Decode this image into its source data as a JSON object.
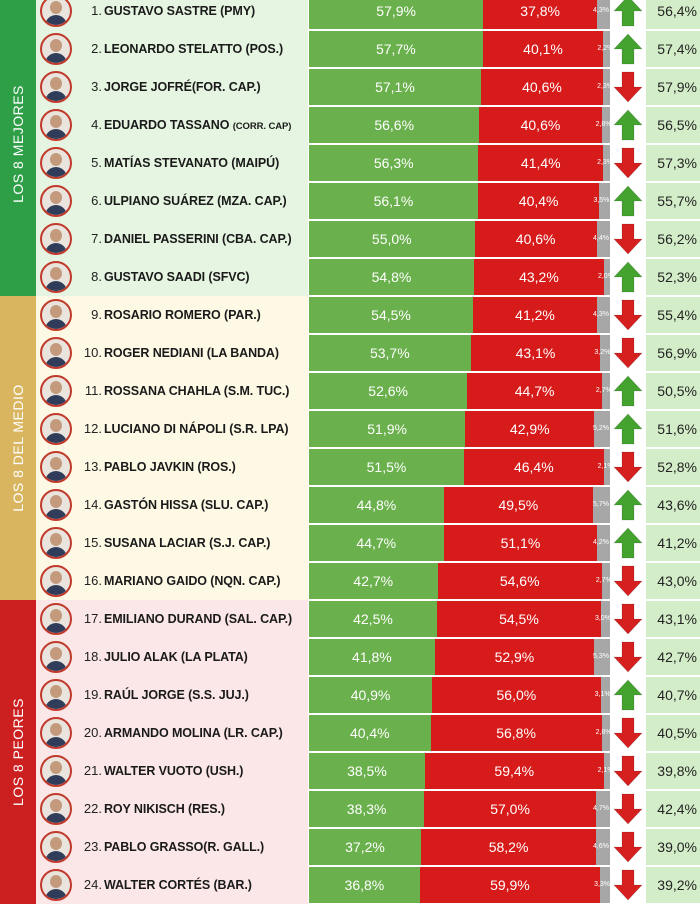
{
  "groups": [
    {
      "label": "LOS 8 MEJORES",
      "color": "#2e9e47",
      "row_bg": "#e6f5e1",
      "from": 1,
      "to": 8
    },
    {
      "label": "LOS 8 DEL MEDIO",
      "color": "#d9b55f",
      "row_bg": "#fdf9e5",
      "from": 9,
      "to": 16
    },
    {
      "label": "LOS 8 PEORES",
      "color": "#cc1f1f",
      "row_bg": "#fbe7e7",
      "from": 17,
      "to": 24
    }
  ],
  "colors": {
    "approval": "#6ab04c",
    "disapproval": "#d71a1a",
    "ns": "#a7a7a7",
    "up": "#43a32e",
    "down": "#d61f1f",
    "previous_bg": "#d4edc9"
  },
  "chart_data": {
    "type": "bar",
    "stacked": true,
    "orientation": "horizontal",
    "rows": [
      {
        "rank": "1.",
        "name": "GUSTAVO SASTRE",
        "sub": "(PMY)",
        "approval": 57.9,
        "approval_label": "57,9%",
        "disapproval": 37.8,
        "disapproval_label": "37,8%",
        "ns": 4.3,
        "ns_label": "4,3%",
        "trend": "up",
        "previous": 56.4,
        "previous_label": "56,4%",
        "sub_small": false
      },
      {
        "rank": "2.",
        "name": "LEONARDO STELATTO",
        "sub": "(POS.)",
        "approval": 57.7,
        "approval_label": "57,7%",
        "disapproval": 40.1,
        "disapproval_label": "40,1%",
        "ns": 2.2,
        "ns_label": "2,2%",
        "trend": "up",
        "previous": 57.4,
        "previous_label": "57,4%",
        "sub_small": false
      },
      {
        "rank": "3.",
        "name": "JORGE JOFRÉ",
        "sub": "(FOR. CAP.)",
        "approval": 57.1,
        "approval_label": "57,1%",
        "disapproval": 40.6,
        "disapproval_label": "40,6%",
        "ns": 2.3,
        "ns_label": "2,3%",
        "trend": "down",
        "previous": 57.9,
        "previous_label": "57,9%",
        "sub_small": false,
        "nospace": true
      },
      {
        "rank": "4.",
        "name": "EDUARDO TASSANO",
        "sub": "(CORR. CAP)",
        "approval": 56.6,
        "approval_label": "56,6%",
        "disapproval": 40.6,
        "disapproval_label": "40,6%",
        "ns": 2.8,
        "ns_label": "2,8%",
        "trend": "up",
        "previous": 56.5,
        "previous_label": "56,5%",
        "sub_small": true
      },
      {
        "rank": "5.",
        "name": "MATÍAS STEVANATO",
        "sub": "(MAIPÚ)",
        "approval": 56.3,
        "approval_label": "56,3%",
        "disapproval": 41.4,
        "disapproval_label": "41,4%",
        "ns": 2.3,
        "ns_label": "2,3%",
        "trend": "down",
        "previous": 57.3,
        "previous_label": "57,3%",
        "sub_small": false
      },
      {
        "rank": "6.",
        "name": "ULPIANO SUÁREZ",
        "sub": "(MZA. CAP.)",
        "approval": 56.1,
        "approval_label": "56,1%",
        "disapproval": 40.4,
        "disapproval_label": "40,4%",
        "ns": 3.5,
        "ns_label": "3,5%",
        "trend": "up",
        "previous": 55.7,
        "previous_label": "55,7%",
        "sub_small": false
      },
      {
        "rank": "7.",
        "name": "DANIEL PASSERINI",
        "sub": "(CBA. CAP.)",
        "approval": 55.0,
        "approval_label": "55,0%",
        "disapproval": 40.6,
        "disapproval_label": "40,6%",
        "ns": 4.4,
        "ns_label": "4,4%",
        "trend": "down",
        "previous": 56.2,
        "previous_label": "56,2%",
        "sub_small": false
      },
      {
        "rank": "8.",
        "name": "GUSTAVO SAADI",
        "sub": "(SFVC)",
        "approval": 54.8,
        "approval_label": "54,8%",
        "disapproval": 43.2,
        "disapproval_label": "43,2%",
        "ns": 2.0,
        "ns_label": "2,0%",
        "trend": "up",
        "previous": 52.3,
        "previous_label": "52,3%",
        "sub_small": false
      },
      {
        "rank": "9.",
        "name": "ROSARIO ROMERO",
        "sub": "(PAR.)",
        "approval": 54.5,
        "approval_label": "54,5%",
        "disapproval": 41.2,
        "disapproval_label": "41,2%",
        "ns": 4.3,
        "ns_label": "4,3%",
        "trend": "down",
        "previous": 55.4,
        "previous_label": "55,4%",
        "sub_small": false
      },
      {
        "rank": "10.",
        "name": "ROGER NEDIANI",
        "sub": "(LA BANDA)",
        "approval": 53.7,
        "approval_label": "53,7%",
        "disapproval": 43.1,
        "disapproval_label": "43,1%",
        "ns": 3.2,
        "ns_label": "3,2%",
        "trend": "down",
        "previous": 56.9,
        "previous_label": "56,9%",
        "sub_small": false
      },
      {
        "rank": "11.",
        "name": "ROSSANA CHAHLA",
        "sub": "(S.M. TUC.)",
        "approval": 52.6,
        "approval_label": "52,6%",
        "disapproval": 44.7,
        "disapproval_label": "44,7%",
        "ns": 2.7,
        "ns_label": "2,7%",
        "trend": "up",
        "previous": 50.5,
        "previous_label": "50,5%",
        "sub_small": false
      },
      {
        "rank": "12.",
        "name": "LUCIANO DI NÁPOLI",
        "sub": "(S.R. LPA)",
        "approval": 51.9,
        "approval_label": "51,9%",
        "disapproval": 42.9,
        "disapproval_label": "42,9%",
        "ns": 5.2,
        "ns_label": "5,2%",
        "trend": "up",
        "previous": 51.6,
        "previous_label": "51,6%",
        "sub_small": false
      },
      {
        "rank": "13.",
        "name": "PABLO JAVKIN",
        "sub": "(ROS.)",
        "approval": 51.5,
        "approval_label": "51,5%",
        "disapproval": 46.4,
        "disapproval_label": "46,4%",
        "ns": 2.1,
        "ns_label": "2,1%",
        "trend": "down",
        "previous": 52.8,
        "previous_label": "52,8%",
        "sub_small": false
      },
      {
        "rank": "14.",
        "name": "GASTÓN HISSA",
        "sub": "(SLU. CAP.)",
        "approval": 44.8,
        "approval_label": "44,8%",
        "disapproval": 49.5,
        "disapproval_label": "49,5%",
        "ns": 5.7,
        "ns_label": "5,7%",
        "trend": "up",
        "previous": 43.6,
        "previous_label": "43,6%",
        "sub_small": false
      },
      {
        "rank": "15.",
        "name": "SUSANA LACIAR",
        "sub": "(S.J. CAP.)",
        "approval": 44.7,
        "approval_label": "44,7%",
        "disapproval": 51.1,
        "disapproval_label": "51,1%",
        "ns": 4.2,
        "ns_label": "4,2%",
        "trend": "up",
        "previous": 41.2,
        "previous_label": "41,2%",
        "sub_small": false
      },
      {
        "rank": "16.",
        "name": "MARIANO GAIDO",
        "sub": "(NQN. CAP.)",
        "approval": 42.7,
        "approval_label": "42,7%",
        "disapproval": 54.6,
        "disapproval_label": "54,6%",
        "ns": 2.7,
        "ns_label": "2,7%",
        "trend": "down",
        "previous": 43.0,
        "previous_label": "43,0%",
        "sub_small": false
      },
      {
        "rank": "17.",
        "name": "EMILIANO DURAND",
        "sub": "(SAL. CAP.)",
        "approval": 42.5,
        "approval_label": "42,5%",
        "disapproval": 54.5,
        "disapproval_label": "54,5%",
        "ns": 3.0,
        "ns_label": "3,0%",
        "trend": "down",
        "previous": 43.1,
        "previous_label": "43,1%",
        "sub_small": false
      },
      {
        "rank": "18.",
        "name": "JULIO ALAK",
        "sub": "(LA PLATA)",
        "approval": 41.8,
        "approval_label": "41,8%",
        "disapproval": 52.9,
        "disapproval_label": "52,9%",
        "ns": 5.3,
        "ns_label": "5,3%",
        "trend": "down",
        "previous": 42.7,
        "previous_label": "42,7%",
        "sub_small": false
      },
      {
        "rank": "19.",
        "name": "RAÚL JORGE",
        "sub": "(S.S. JUJ.)",
        "approval": 40.9,
        "approval_label": "40,9%",
        "disapproval": 56.0,
        "disapproval_label": "56,0%",
        "ns": 3.1,
        "ns_label": "3,1%",
        "trend": "up",
        "previous": 40.7,
        "previous_label": "40,7%",
        "sub_small": false
      },
      {
        "rank": "20.",
        "name": "ARMANDO MOLINA",
        "sub": "(LR. CAP.)",
        "approval": 40.4,
        "approval_label": "40,4%",
        "disapproval": 56.8,
        "disapproval_label": "56,8%",
        "ns": 2.8,
        "ns_label": "2,8%",
        "trend": "down",
        "previous": 40.5,
        "previous_label": "40,5%",
        "sub_small": false
      },
      {
        "rank": "21.",
        "name": "WALTER VUOTO",
        "sub": "(USH.)",
        "approval": 38.5,
        "approval_label": "38,5%",
        "disapproval": 59.4,
        "disapproval_label": "59,4%",
        "ns": 2.1,
        "ns_label": "2,1%",
        "trend": "down",
        "previous": 39.8,
        "previous_label": "39,8%",
        "sub_small": false
      },
      {
        "rank": "22.",
        "name": "ROY NIKISCH",
        "sub": "(RES.)",
        "approval": 38.3,
        "approval_label": "38,3%",
        "disapproval": 57.0,
        "disapproval_label": "57,0%",
        "ns": 4.7,
        "ns_label": "4,7%",
        "trend": "down",
        "previous": 42.4,
        "previous_label": "42,4%",
        "sub_small": false
      },
      {
        "rank": "23.",
        "name": "PABLO GRASSO",
        "sub": "(R. GALL.)",
        "approval": 37.2,
        "approval_label": "37,2%",
        "disapproval": 58.2,
        "disapproval_label": "58,2%",
        "ns": 4.6,
        "ns_label": "4,6%",
        "trend": "down",
        "previous": 39.0,
        "previous_label": "39,0%",
        "sub_small": false,
        "nospace": true
      },
      {
        "rank": "24.",
        "name": "WALTER CORTÉS",
        "sub": "(BAR.)",
        "approval": 36.8,
        "approval_label": "36,8%",
        "disapproval": 59.9,
        "disapproval_label": "59,9%",
        "ns": 3.3,
        "ns_label": "3,3%",
        "trend": "down",
        "previous": 39.2,
        "previous_label": "39,2%",
        "sub_small": false
      }
    ]
  }
}
